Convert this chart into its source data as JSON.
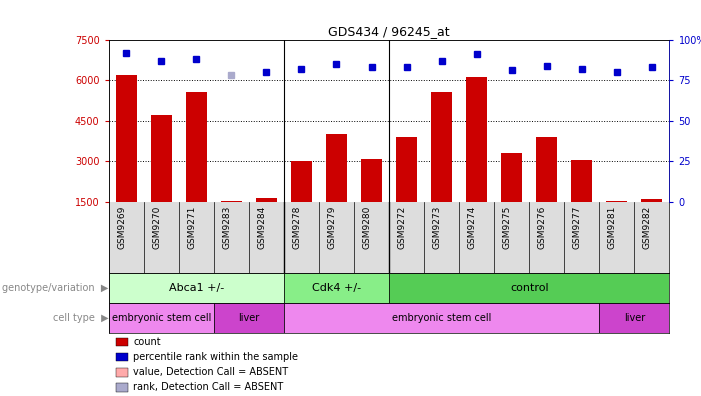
{
  "title": "GDS434 / 96245_at",
  "samples": [
    "GSM9269",
    "GSM9270",
    "GSM9271",
    "GSM9283",
    "GSM9284",
    "GSM9278",
    "GSM9279",
    "GSM9280",
    "GSM9272",
    "GSM9273",
    "GSM9274",
    "GSM9275",
    "GSM9276",
    "GSM9277",
    "GSM9281",
    "GSM9282"
  ],
  "bar_values": [
    6200,
    4700,
    5550,
    1550,
    1650,
    3000,
    4000,
    3100,
    3900,
    5550,
    6100,
    3300,
    3900,
    3050,
    1550,
    1600
  ],
  "bar_absent": [
    false,
    false,
    false,
    false,
    false,
    false,
    false,
    false,
    false,
    false,
    false,
    false,
    false,
    false,
    false,
    false
  ],
  "rank_values": [
    92,
    87,
    88,
    78,
    80,
    82,
    85,
    83,
    83,
    87,
    91,
    81,
    84,
    82,
    80,
    83
  ],
  "rank_absent": [
    false,
    false,
    false,
    true,
    false,
    false,
    false,
    false,
    false,
    false,
    false,
    false,
    false,
    false,
    false,
    false
  ],
  "ylim_left": [
    1500,
    7500
  ],
  "ylim_right": [
    0,
    100
  ],
  "yticks_left": [
    1500,
    3000,
    4500,
    6000,
    7500
  ],
  "yticks_right": [
    0,
    25,
    50,
    75,
    100
  ],
  "ytick_labels_right": [
    "0",
    "25",
    "50",
    "75",
    "100%"
  ],
  "bar_color": "#cc0000",
  "bar_absent_color": "#ffaaaa",
  "rank_color": "#0000cc",
  "rank_absent_color": "#aaaacc",
  "grid_values": [
    3000,
    4500,
    6000
  ],
  "genotype_groups": [
    {
      "label": "Abca1 +/-",
      "start": 0,
      "end": 4,
      "color": "#ccffcc"
    },
    {
      "label": "Cdk4 +/-",
      "start": 5,
      "end": 7,
      "color": "#88ee88"
    },
    {
      "label": "control",
      "start": 8,
      "end": 15,
      "color": "#55cc55"
    }
  ],
  "celltype_groups": [
    {
      "label": "embryonic stem cell",
      "start": 0,
      "end": 2,
      "color": "#ee88ee"
    },
    {
      "label": "liver",
      "start": 3,
      "end": 4,
      "color": "#cc44cc"
    },
    {
      "label": "embryonic stem cell",
      "start": 5,
      "end": 13,
      "color": "#ee88ee"
    },
    {
      "label": "liver",
      "start": 14,
      "end": 15,
      "color": "#cc44cc"
    }
  ],
  "legend_items": [
    {
      "label": "count",
      "color": "#cc0000"
    },
    {
      "label": "percentile rank within the sample",
      "color": "#0000cc"
    },
    {
      "label": "value, Detection Call = ABSENT",
      "color": "#ffaaaa"
    },
    {
      "label": "rank, Detection Call = ABSENT",
      "color": "#aaaacc"
    }
  ],
  "genotype_label": "genotype/variation",
  "celltype_label": "cell type"
}
